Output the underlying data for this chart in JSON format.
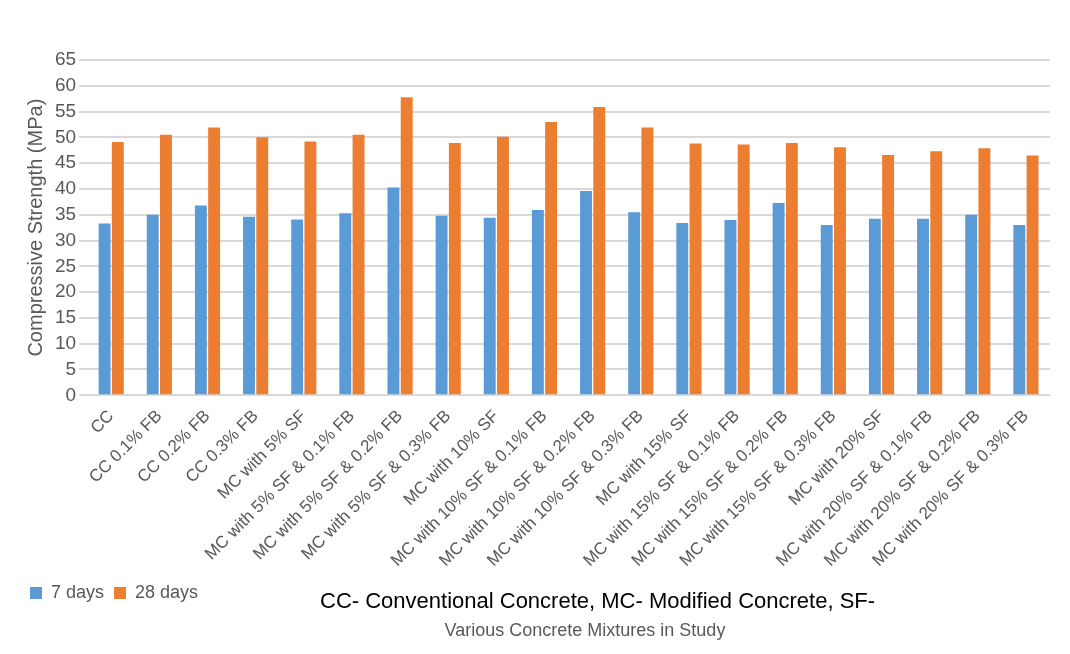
{
  "chart_data": {
    "type": "bar",
    "xlabel": "Various Concrete Mixtures in Study",
    "ylabel": "Compressive Strength (MPa)",
    "annotations": [
      "CC- Conventional Concrete, MC- Modified Concrete, SF-"
    ],
    "categories": [
      "CC",
      "CC 0.1% FB",
      "CC 0.2% FB",
      "CC 0.3% FB",
      "MC with 5% SF",
      "MC with 5% SF & 0.1% FB",
      "MC with 5% SF & 0.2% FB",
      "MC with 5% SF & 0.3% FB",
      "MC with 10% SF",
      "MC with 10% SF & 0.1% FB",
      "MC with 10% SF & 0.2% FB",
      "MC with 10% SF & 0.3% FB",
      "MC with 15% SF",
      "MC with 15% SF & 0.1% FB",
      "MC with 15% SF & 0.2% FB",
      "MC with 15% SF & 0.3% FB",
      "MC with 20% SF",
      "MC with 20% SF & 0.1% FB",
      "MC with 20% SF & 0.2% FB",
      "MC with 20% SF & 0.3% FB"
    ],
    "series": [
      {
        "name": "7 days",
        "color": "#5b9bd5",
        "values": [
          33.3,
          35,
          36.8,
          34.6,
          34.1,
          35.3,
          40.3,
          34.8,
          34.4,
          35.9,
          39.6,
          35.5,
          33.4,
          34,
          37.3,
          33,
          34.2,
          34.2,
          35,
          33
        ]
      },
      {
        "name": "28 days",
        "color": "#ed7d31",
        "values": [
          49.1,
          50.5,
          51.9,
          50,
          49.2,
          50.5,
          57.8,
          48.9,
          50.1,
          53,
          55.9,
          51.9,
          48.8,
          48.6,
          48.9,
          48.1,
          46.6,
          47.3,
          47.9,
          46.5
        ]
      }
    ],
    "ylim": [
      0,
      65
    ],
    "yticks": [
      0,
      5,
      10,
      15,
      20,
      25,
      30,
      35,
      40,
      45,
      50,
      55,
      60,
      65
    ],
    "grid": "y",
    "legend": "bottom left"
  }
}
